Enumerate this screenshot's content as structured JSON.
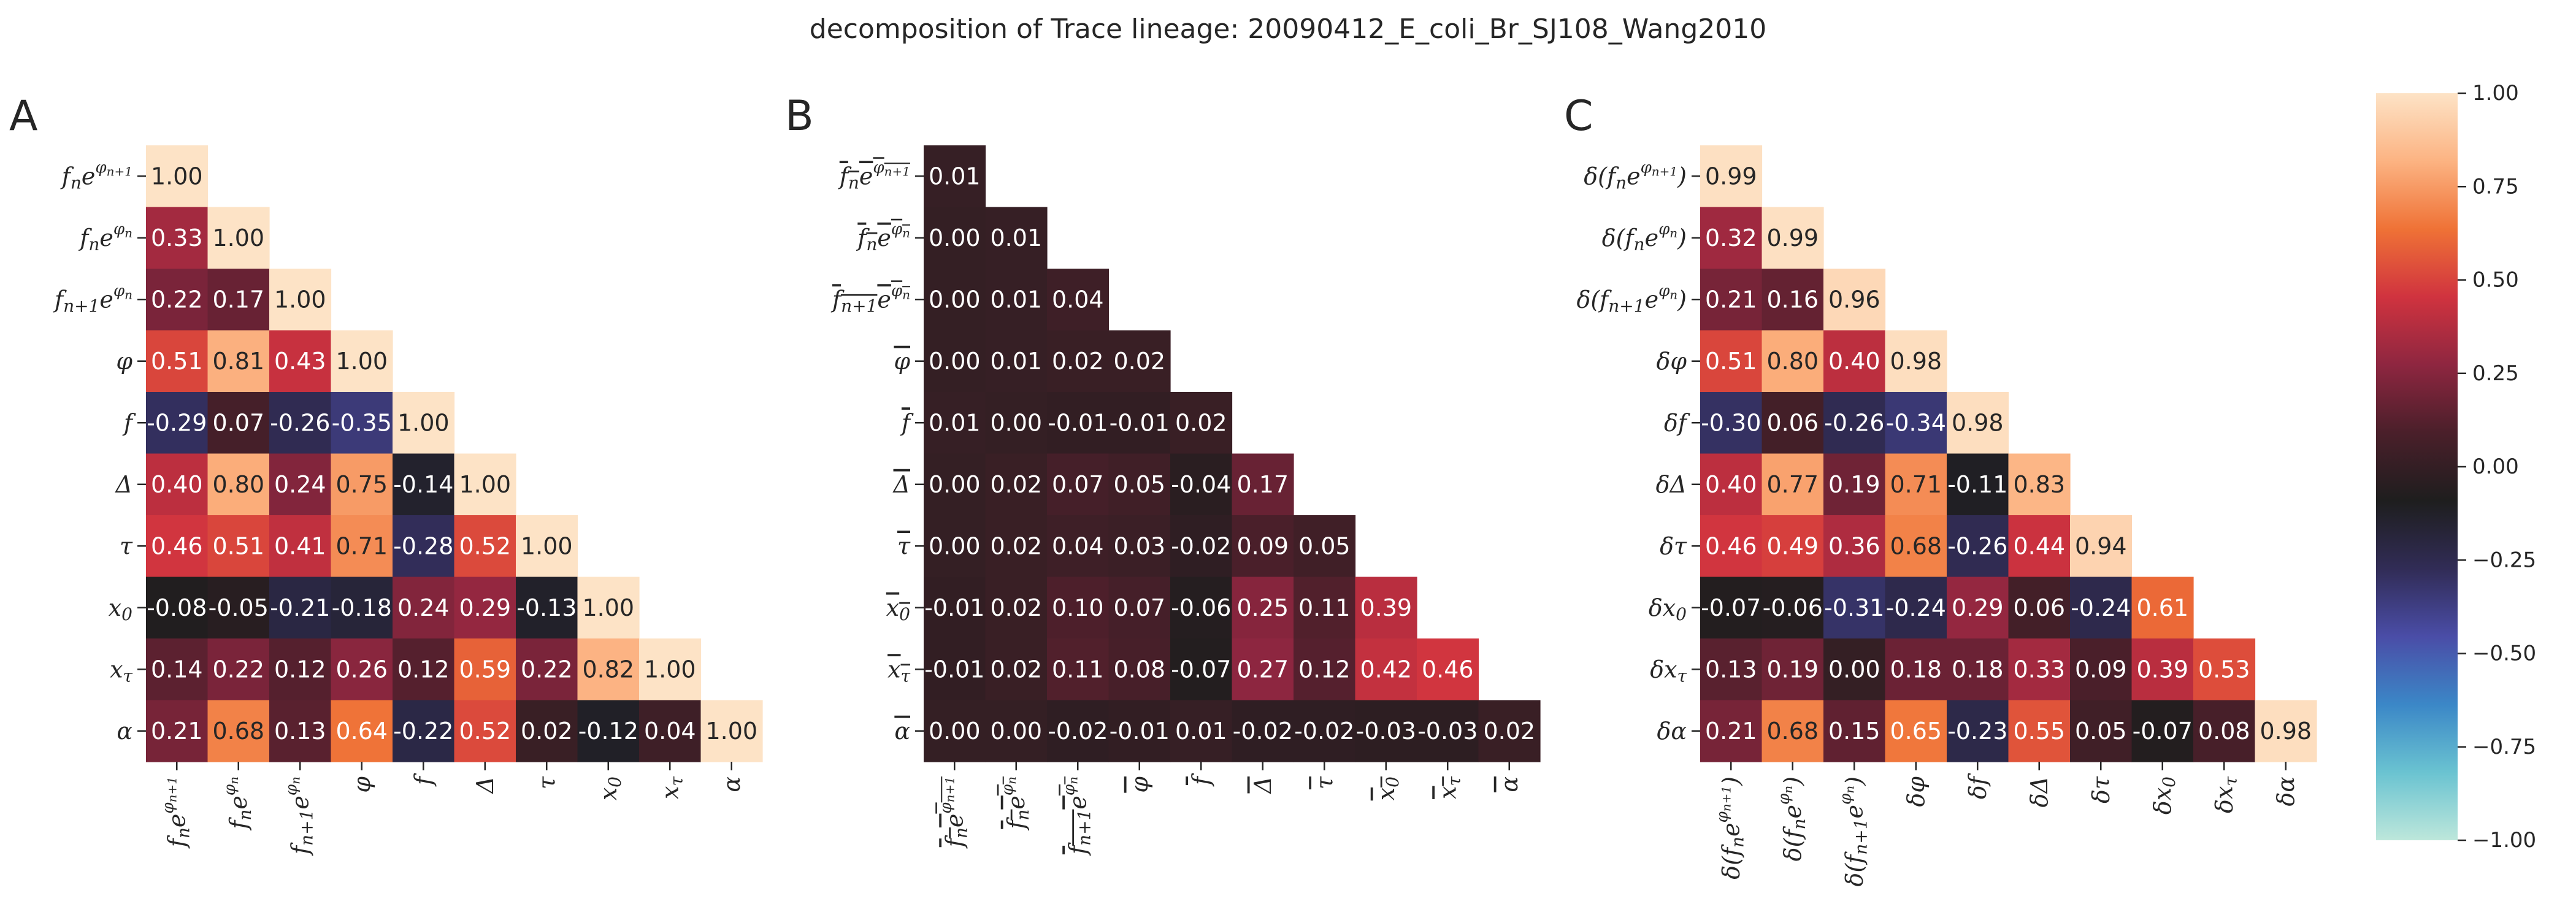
{
  "title": "decomposition of Trace lineage: 20090412_E_coli_Br_SJ108_Wang2010",
  "chart_data": [
    {
      "type": "heatmap",
      "panel": "A",
      "row_labels": [
        "f_ne^{φ_{n+1}}",
        "f_ne^{φ_n}",
        "f_{n+1}e^{φ_n}",
        "φ",
        "f",
        "Δ",
        "τ",
        "x_0",
        "x_τ",
        "α"
      ],
      "col_labels": [
        "f_ne^{φ_{n+1}}",
        "f_ne^{φ_n}",
        "f_{n+1}e^{φ_n}",
        "φ",
        "f",
        "Δ",
        "τ",
        "x_0",
        "x_τ",
        "α"
      ],
      "values": [
        [
          1.0
        ],
        [
          0.33,
          1.0
        ],
        [
          0.22,
          0.17,
          1.0
        ],
        [
          0.51,
          0.81,
          0.43,
          1.0
        ],
        [
          -0.29,
          0.07,
          -0.26,
          -0.35,
          1.0
        ],
        [
          0.4,
          0.8,
          0.24,
          0.75,
          -0.14,
          1.0
        ],
        [
          0.46,
          0.51,
          0.41,
          0.71,
          -0.28,
          0.52,
          1.0
        ],
        [
          -0.08,
          -0.05,
          -0.21,
          -0.18,
          0.24,
          0.29,
          -0.13,
          1.0
        ],
        [
          0.14,
          0.22,
          0.12,
          0.26,
          0.12,
          0.59,
          0.22,
          0.82,
          1.0
        ],
        [
          0.21,
          0.68,
          0.13,
          0.64,
          -0.22,
          0.52,
          0.02,
          -0.12,
          0.04,
          1.0
        ]
      ]
    },
    {
      "type": "heatmap",
      "panel": "B",
      "row_labels": [
        "‾f_ne^{φ_{n+1}}",
        "‾f_ne^{φ_n}",
        "‾f_{n+1}e^{φ_n}",
        "‾φ",
        "‾f",
        "‾Δ",
        "‾τ",
        "‾x_0",
        "‾x_τ",
        "‾α"
      ],
      "col_labels": [
        "‾f_ne^{φ_{n+1}}",
        "‾f_ne^{φ_n}",
        "‾f_{n+1}e^{φ_n}",
        "‾φ",
        "‾f",
        "‾Δ",
        "‾τ",
        "‾x_0",
        "‾x_τ",
        "‾α"
      ],
      "values": [
        [
          0.01
        ],
        [
          0.0,
          0.01
        ],
        [
          0.0,
          0.01,
          0.04
        ],
        [
          -0.0,
          0.01,
          0.02,
          0.02
        ],
        [
          0.01,
          0.0,
          -0.01,
          -0.01,
          0.02
        ],
        [
          -0.0,
          0.02,
          0.07,
          0.05,
          -0.04,
          0.17
        ],
        [
          -0.0,
          0.02,
          0.04,
          0.03,
          -0.02,
          0.09,
          0.05
        ],
        [
          -0.01,
          0.02,
          0.1,
          0.07,
          -0.06,
          0.25,
          0.11,
          0.39
        ],
        [
          -0.01,
          0.02,
          0.11,
          0.08,
          -0.07,
          0.27,
          0.12,
          0.42,
          0.46
        ],
        [
          0.0,
          -0.0,
          -0.02,
          -0.01,
          0.01,
          -0.02,
          -0.02,
          -0.03,
          -0.03,
          0.02
        ]
      ]
    },
    {
      "type": "heatmap",
      "panel": "C",
      "row_labels": [
        "δ(f_ne^{φ_{n+1}})",
        "δ(f_ne^{φ_n})",
        "δ(f_{n+1}e^{φ_n})",
        "δφ",
        "δf",
        "δΔ",
        "δτ",
        "δx_0",
        "δx_τ",
        "δα"
      ],
      "col_labels": [
        "δ(f_ne^{φ_{n+1}})",
        "δ(f_ne^{φ_n})",
        "δ(f_{n+1}e^{φ_n})",
        "δφ",
        "δf",
        "δΔ",
        "δτ",
        "δx_0",
        "δx_τ",
        "δα"
      ],
      "values": [
        [
          0.99
        ],
        [
          0.32,
          0.99
        ],
        [
          0.21,
          0.16,
          0.96
        ],
        [
          0.51,
          0.8,
          0.4,
          0.98
        ],
        [
          -0.3,
          0.06,
          -0.26,
          -0.34,
          0.98
        ],
        [
          0.4,
          0.77,
          0.19,
          0.71,
          -0.11,
          0.83
        ],
        [
          0.46,
          0.49,
          0.36,
          0.68,
          -0.26,
          0.44,
          0.94
        ],
        [
          -0.07,
          -0.06,
          -0.31,
          -0.24,
          0.29,
          0.06,
          -0.24,
          0.61
        ],
        [
          0.13,
          0.19,
          0.0,
          0.18,
          0.18,
          0.33,
          0.09,
          0.39,
          0.53
        ],
        [
          0.21,
          0.68,
          0.15,
          0.65,
          -0.23,
          0.55,
          0.05,
          -0.07,
          0.08,
          0.98
        ]
      ]
    }
  ],
  "colorbar": {
    "vmin": -1.0,
    "vmax": 1.0,
    "ticks": [
      "1.00",
      "0.75",
      "0.50",
      "0.25",
      "0.00",
      "−0.25",
      "−0.50",
      "−0.75",
      "−1.00"
    ],
    "colormap": "icefire",
    "stops": [
      "#bde7db",
      "#6ac3d1",
      "#3b87c7",
      "#4a4da7",
      "#312c56",
      "#1e1e1e",
      "#4a1f2a",
      "#8e2640",
      "#d0333f",
      "#ef7236",
      "#fcb382",
      "#fde3c6"
    ]
  },
  "panels": [
    {
      "letter": "A"
    },
    {
      "letter": "B"
    },
    {
      "letter": "C"
    }
  ]
}
